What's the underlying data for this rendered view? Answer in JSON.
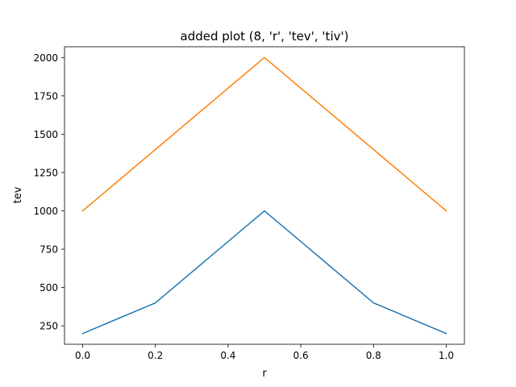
{
  "chart_data": {
    "type": "line",
    "title": "added plot (8, 'r', 'tev', 'tiv')",
    "xlabel": "r",
    "ylabel": "tev",
    "xlim": [
      -0.05,
      1.05
    ],
    "ylim": [
      130,
      2070
    ],
    "xticks": [
      0.0,
      0.2,
      0.4,
      0.6,
      0.8,
      1.0
    ],
    "xtick_labels": [
      "0.0",
      "0.2",
      "0.4",
      "0.6",
      "0.8",
      "1.0"
    ],
    "yticks": [
      250,
      500,
      750,
      1000,
      1250,
      1500,
      1750,
      2000
    ],
    "ytick_labels": [
      "250",
      "500",
      "750",
      "1000",
      "1250",
      "1500",
      "1750",
      "2000"
    ],
    "grid": false,
    "legend": "none",
    "series": [
      {
        "color": "#1f77b4",
        "x": [
          0.0,
          0.2,
          0.5,
          0.8,
          1.0
        ],
        "y": [
          200,
          400,
          1000,
          400,
          200
        ]
      },
      {
        "color": "#ff7f0e",
        "x": [
          0.0,
          0.5,
          1.0
        ],
        "y": [
          1000,
          2000,
          1000
        ]
      }
    ]
  }
}
